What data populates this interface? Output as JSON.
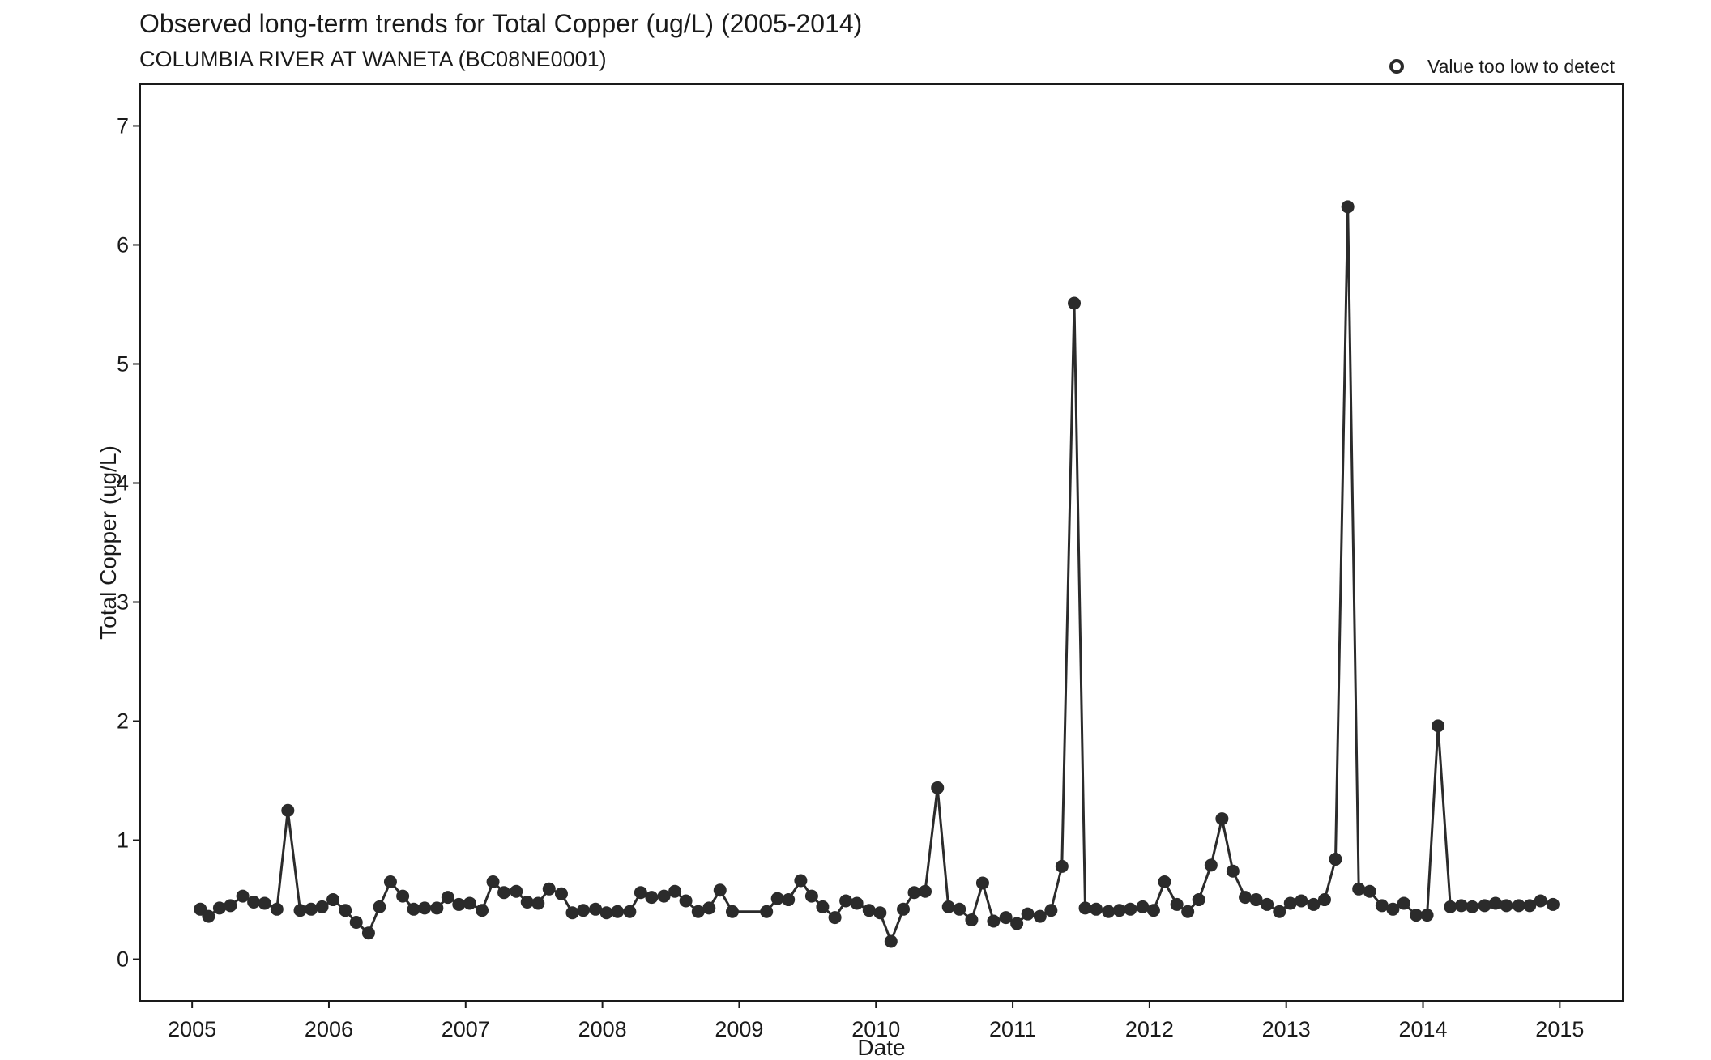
{
  "chart_data": {
    "type": "line",
    "title": "Observed long-term trends for Total Copper (ug/L) (2005-2014)",
    "subtitle": "COLUMBIA RIVER AT WANETA (BC08NE0001)",
    "xlabel": "Date",
    "ylabel": "Total Copper (ug/L)",
    "xlim": [
      2004.62,
      2015.46
    ],
    "ylim": [
      -0.35,
      7.35
    ],
    "x_ticks": [
      2005,
      2006,
      2007,
      2008,
      2009,
      2010,
      2011,
      2012,
      2013,
      2014,
      2015
    ],
    "x_tick_labels": [
      "2005",
      "2006",
      "2007",
      "2008",
      "2009",
      "2010",
      "2011",
      "2012",
      "2013",
      "2014",
      "2015"
    ],
    "y_ticks": [
      0,
      1,
      2,
      3,
      4,
      5,
      6,
      7
    ],
    "y_tick_labels": [
      "0",
      "1",
      "2",
      "3",
      "4",
      "5",
      "6",
      "7"
    ],
    "grid": false,
    "legend": {
      "position": "top-right",
      "entries": [
        {
          "label": "Value too low to detect",
          "marker": "open-circle"
        }
      ]
    },
    "colors": {
      "series": "#2b2b2b",
      "axis": "#1a1a1a"
    },
    "series": [
      {
        "x": [
          2005.06,
          2005.12,
          2005.2,
          2005.28,
          2005.37,
          2005.45,
          2005.53,
          2005.62,
          2005.7,
          2005.79,
          2005.87,
          2005.95,
          2006.03,
          2006.12,
          2006.2,
          2006.29,
          2006.37,
          2006.45,
          2006.54,
          2006.62,
          2006.7,
          2006.79,
          2006.87,
          2006.95,
          2007.03,
          2007.12,
          2007.2,
          2007.28,
          2007.37,
          2007.45,
          2007.53,
          2007.61,
          2007.7,
          2007.78,
          2007.86,
          2007.95,
          2008.03,
          2008.11,
          2008.2,
          2008.28,
          2008.36,
          2008.45,
          2008.53,
          2008.61,
          2008.7,
          2008.78,
          2008.86,
          2008.95,
          2009.2,
          2009.28,
          2009.36,
          2009.45,
          2009.53,
          2009.61,
          2009.7,
          2009.78,
          2009.86,
          2009.95,
          2010.03,
          2010.11,
          2010.2,
          2010.28,
          2010.36,
          2010.45,
          2010.53,
          2010.61,
          2010.7,
          2010.78,
          2010.86,
          2010.95,
          2011.03,
          2011.11,
          2011.2,
          2011.28,
          2011.36,
          2011.45,
          2011.53,
          2011.61,
          2011.7,
          2011.78,
          2011.86,
          2011.95,
          2012.03,
          2012.11,
          2012.2,
          2012.28,
          2012.36,
          2012.45,
          2012.53,
          2012.61,
          2012.7,
          2012.78,
          2012.86,
          2012.95,
          2013.03,
          2013.11,
          2013.2,
          2013.28,
          2013.36,
          2013.45,
          2013.53,
          2013.61,
          2013.7,
          2013.78,
          2013.86,
          2013.95,
          2014.03,
          2014.11,
          2014.2,
          2014.28,
          2014.36,
          2014.45,
          2014.53,
          2014.61,
          2014.7,
          2014.78,
          2014.86,
          2014.95
        ],
        "y": [
          0.42,
          0.36,
          0.43,
          0.45,
          0.53,
          0.48,
          0.47,
          0.42,
          1.25,
          0.41,
          0.42,
          0.44,
          0.5,
          0.41,
          0.31,
          0.22,
          0.44,
          0.65,
          0.53,
          0.42,
          0.43,
          0.43,
          0.52,
          0.46,
          0.47,
          0.41,
          0.65,
          0.56,
          0.57,
          0.48,
          0.47,
          0.59,
          0.55,
          0.39,
          0.41,
          0.42,
          0.39,
          0.4,
          0.4,
          0.56,
          0.52,
          0.53,
          0.57,
          0.49,
          0.4,
          0.43,
          0.58,
          0.4,
          0.4,
          0.51,
          0.5,
          0.66,
          0.53,
          0.44,
          0.35,
          0.49,
          0.47,
          0.41,
          0.39,
          0.15,
          0.42,
          0.56,
          0.57,
          1.44,
          0.44,
          0.42,
          0.33,
          0.64,
          0.32,
          0.35,
          0.3,
          0.38,
          0.36,
          0.41,
          0.78,
          5.51,
          0.43,
          0.42,
          0.4,
          0.41,
          0.42,
          0.44,
          0.41,
          0.65,
          0.46,
          0.4,
          0.5,
          0.79,
          1.18,
          0.74,
          0.52,
          0.5,
          0.46,
          0.4,
          0.47,
          0.49,
          0.46,
          0.5,
          0.84,
          6.32,
          0.59,
          0.57,
          0.45,
          0.42,
          0.47,
          0.37,
          0.37,
          1.96,
          0.44,
          0.45,
          0.44,
          0.45,
          0.47,
          0.45,
          0.45,
          0.45,
          0.49,
          0.46
        ]
      }
    ]
  }
}
